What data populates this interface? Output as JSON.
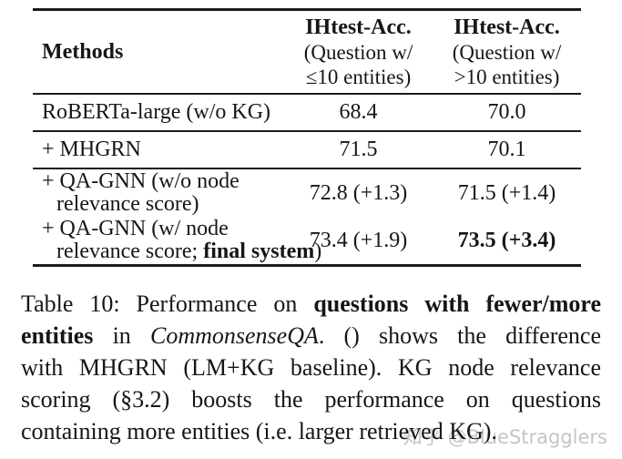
{
  "page": {
    "background": "#ffffff",
    "text_color": "#161616",
    "rule_color": "#1b1b1b"
  },
  "table": {
    "header": {
      "methods": "Methods",
      "columns": [
        {
          "title": "IHtest-Acc.",
          "sub1": "(Question w/",
          "sub2": "≤10 entities)"
        },
        {
          "title": "IHtest-Acc.",
          "sub1": "(Question w/",
          "sub2": ">10 entities)"
        }
      ]
    },
    "rows": [
      {
        "method": [
          [
            {
              "t": "RoBERTa-large (w/o KG)",
              "b": false
            }
          ]
        ],
        "acc_le10": {
          "t": "68.4",
          "b": false
        },
        "acc_gt10": {
          "t": "70.0",
          "b": false
        },
        "rule_below": true
      },
      {
        "method": [
          [
            {
              "t": "+ MHGRN",
              "b": false
            }
          ]
        ],
        "acc_le10": {
          "t": "71.5",
          "b": false
        },
        "acc_gt10": {
          "t": "70.1",
          "b": false
        },
        "rule_below": true
      },
      {
        "method": [
          [
            {
              "t": "+ QA-GNN (w/o node",
              "b": false
            }
          ],
          [
            {
              "t": "relevance score)",
              "b": false
            }
          ]
        ],
        "acc_le10": {
          "t": "72.8 (+1.3)",
          "b": false
        },
        "acc_gt10": {
          "t": "71.5 (+1.4)",
          "b": false
        },
        "rule_below": false
      },
      {
        "method": [
          [
            {
              "t": "+ QA-GNN (w/ node",
              "b": false
            }
          ],
          [
            {
              "t": "relevance score; ",
              "b": false
            },
            {
              "t": "final system",
              "b": true
            },
            {
              "t": ")",
              "b": false
            }
          ]
        ],
        "acc_le10": {
          "t": "73.4 (+1.9)",
          "b": false
        },
        "acc_gt10": {
          "t": "73.5 (+3.4)",
          "b": true
        },
        "rule_below": false
      }
    ]
  },
  "caption": {
    "lines": [
      {
        "segments": [
          {
            "t": "Table 10: Performance on ",
            "b": false,
            "i": false
          },
          {
            "t": "questions with fewer/more",
            "b": true,
            "i": false
          }
        ]
      },
      {
        "segments": [
          {
            "t": "entities",
            "b": true,
            "i": false
          },
          {
            "t": " in ",
            "b": false,
            "i": false
          },
          {
            "t": "CommonsenseQA",
            "b": false,
            "i": true
          },
          {
            "t": ". () shows the difference",
            "b": false,
            "i": false
          }
        ]
      },
      {
        "segments": [
          {
            "t": "with MHGRN (LM+KG baseline). KG node relevance",
            "b": false,
            "i": false
          }
        ]
      },
      {
        "segments": [
          {
            "t": "scoring (§3.2) boosts the performance on questions",
            "b": false,
            "i": false
          }
        ]
      },
      {
        "segments": [
          {
            "t": "containing more entities (i.e. larger retrieved KG).",
            "b": false,
            "i": false
          }
        ]
      }
    ]
  },
  "watermark": {
    "text": "知乎 @BlueStragglers",
    "color": "#c5c5c5"
  }
}
